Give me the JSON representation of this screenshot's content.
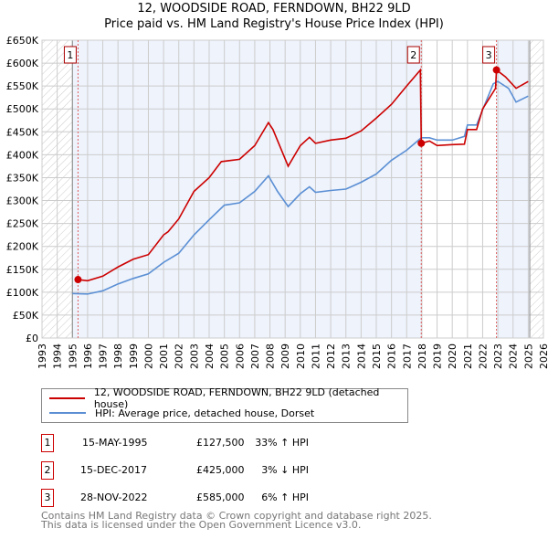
{
  "title_line1": "12, WOODSIDE ROAD, FERNDOWN, BH22 9LD",
  "title_line2": "Price paid vs. HM Land Registry's House Price Index (HPI)",
  "colors": {
    "property": "#cc0000",
    "hpi": "#5b8fd4",
    "shade": "#eef3fc"
  },
  "chart_data": {
    "type": "line",
    "xlim": [
      1993,
      2026
    ],
    "ylim": [
      0,
      650000
    ],
    "x_ticks": [
      "1993",
      "1994",
      "1995",
      "1996",
      "1997",
      "1998",
      "1999",
      "2000",
      "2001",
      "2002",
      "2003",
      "2004",
      "2005",
      "2006",
      "2007",
      "2008",
      "2009",
      "2010",
      "2011",
      "2012",
      "2013",
      "2014",
      "2015",
      "2016",
      "2017",
      "2018",
      "2019",
      "2020",
      "2021",
      "2022",
      "2023",
      "2024",
      "2025",
      "2026"
    ],
    "y_ticks": [
      {
        "v": 0,
        "label": "£0"
      },
      {
        "v": 50000,
        "label": "£50K"
      },
      {
        "v": 100000,
        "label": "£100K"
      },
      {
        "v": 150000,
        "label": "£150K"
      },
      {
        "v": 200000,
        "label": "£200K"
      },
      {
        "v": 250000,
        "label": "£250K"
      },
      {
        "v": 300000,
        "label": "£300K"
      },
      {
        "v": 350000,
        "label": "£350K"
      },
      {
        "v": 400000,
        "label": "£400K"
      },
      {
        "v": 450000,
        "label": "£450K"
      },
      {
        "v": 500000,
        "label": "£500K"
      },
      {
        "v": 550000,
        "label": "£550K"
      },
      {
        "v": 600000,
        "label": "£600K"
      },
      {
        "v": 650000,
        "label": "£650K"
      }
    ],
    "series": [
      {
        "name": "12, WOODSIDE ROAD, FERNDOWN, BH22 9LD (detached house)",
        "color": "#cc0000",
        "x": [
          1995.37,
          1996,
          1997,
          1998,
          1999,
          2000,
          2001,
          2001.3,
          2002,
          2003,
          2004,
          2004.8,
          2005.5,
          2006,
          2007,
          2007.9,
          2008.2,
          2009.2,
          2010,
          2010.6,
          2011,
          2012,
          2013,
          2014,
          2015,
          2016,
          2017,
          2017.9,
          2017.96,
          2018.5,
          2019,
          2020,
          2020.8,
          2021,
          2021.6,
          2022,
          2022.85,
          2022.91,
          2023.5,
          2024.2,
          2025
        ],
        "y": [
          127500,
          125000,
          135000,
          155000,
          172000,
          182000,
          225000,
          232000,
          260000,
          320000,
          350000,
          385000,
          388000,
          390000,
          420000,
          470000,
          455000,
          375000,
          420000,
          438000,
          425000,
          432000,
          436000,
          452000,
          480000,
          510000,
          550000,
          585000,
          425000,
          430000,
          420000,
          422000,
          423000,
          455000,
          455000,
          500000,
          545000,
          585000,
          570000,
          545000,
          560000
        ]
      },
      {
        "name": "HPI: Average price, detached house, Dorset",
        "color": "#5b8fd4",
        "x": [
          1995,
          1996,
          1997,
          1998,
          1999,
          2000,
          2001,
          2002,
          2003,
          2004,
          2005,
          2006,
          2007,
          2007.9,
          2008.5,
          2009.2,
          2010,
          2010.6,
          2011,
          2012,
          2013,
          2014,
          2015,
          2016,
          2017,
          2017.96,
          2018.5,
          2019,
          2020,
          2020.8,
          2021,
          2021.6,
          2022,
          2022.7,
          2023,
          2023.7,
          2024.2,
          2025
        ],
        "y": [
          97000,
          96000,
          103000,
          118000,
          130000,
          140000,
          165000,
          185000,
          225000,
          258000,
          290000,
          295000,
          320000,
          354000,
          320000,
          287000,
          315000,
          330000,
          318000,
          322000,
          325000,
          340000,
          358000,
          388000,
          410000,
          437000,
          437000,
          432000,
          432000,
          440000,
          465000,
          465000,
          498000,
          555000,
          560000,
          545000,
          515000,
          528000
        ]
      }
    ],
    "sales": [
      {
        "id": "1",
        "x": 1995.37,
        "y": 127500,
        "date": "15-MAY-1995",
        "price": "£127,500",
        "hpi": "33% ↑ HPI"
      },
      {
        "id": "2",
        "x": 2017.96,
        "y": 425000,
        "date": "15-DEC-2017",
        "price": "£425,000",
        "hpi": "3% ↓ HPI"
      },
      {
        "id": "3",
        "x": 2022.91,
        "y": 585000,
        "date": "28-NOV-2022",
        "price": "£585,000",
        "hpi": "6% ↑ HPI"
      }
    ],
    "data_start": 1995.0,
    "data_end": 2025.1,
    "grid": true
  },
  "legend": {
    "property": "12, WOODSIDE ROAD, FERNDOWN, BH22 9LD (detached house)",
    "hpi": "HPI: Average price, detached house, Dorset"
  },
  "footer": {
    "line1": "Contains HM Land Registry data © Crown copyright and database right 2025.",
    "line2": "This data is licensed under the Open Government Licence v3.0."
  }
}
